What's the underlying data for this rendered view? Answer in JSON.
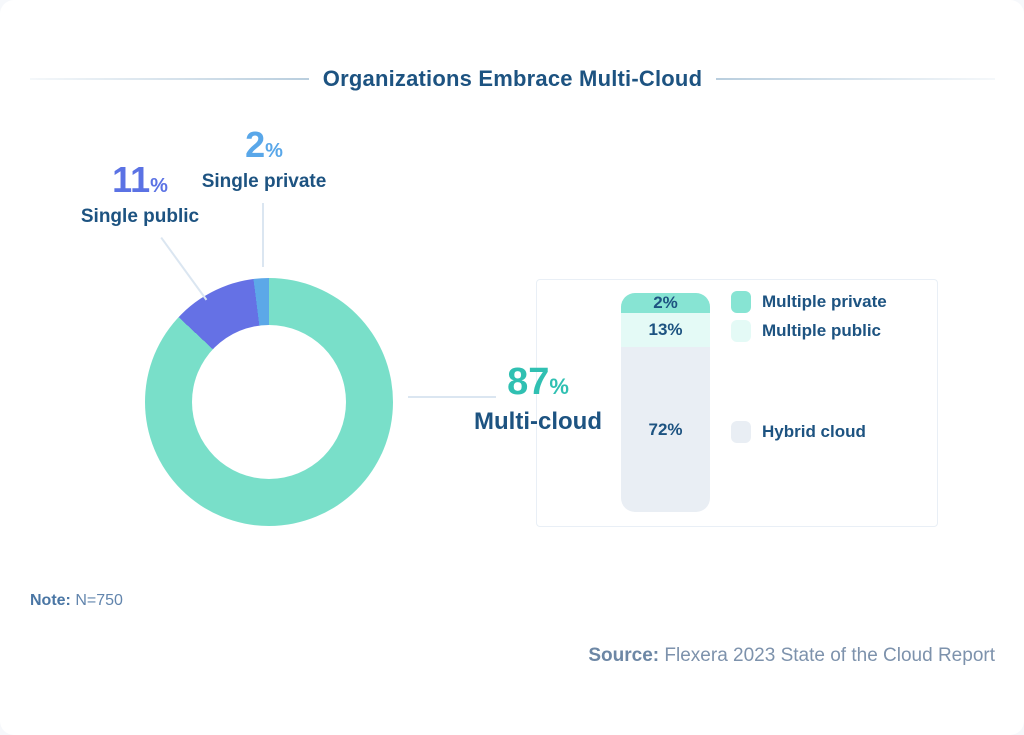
{
  "title": "Organizations Embrace Multi-Cloud",
  "chart_data": [
    {
      "type": "pie",
      "subtype": "donut",
      "title": "Organizations Embrace Multi-Cloud",
      "labels": [
        "Multi-cloud",
        "Single public",
        "Single private"
      ],
      "values": [
        87,
        11,
        2
      ],
      "colors": [
        "#79dfc9",
        "#6571e5",
        "#5ca8e8"
      ],
      "start_angle_deg": 0,
      "direction": "clockwise",
      "note": "N=750",
      "source": "Flexera 2023 State of the Cloud Report"
    },
    {
      "type": "bar",
      "stacked": true,
      "categories": [
        "Multiple private",
        "Multiple public",
        "Hybrid cloud"
      ],
      "values": [
        2,
        13,
        72
      ],
      "colors": [
        "#87e4d3",
        "#e4faf6",
        "#e9eef4"
      ],
      "legend_position": "right"
    }
  ],
  "callouts": {
    "single_private": {
      "value": "2",
      "pct": "%",
      "label": "Single private"
    },
    "single_public": {
      "value": "11",
      "pct": "%",
      "label": "Single public"
    },
    "multi_cloud": {
      "value": "87",
      "pct": "%",
      "label": "Multi-cloud"
    }
  },
  "bar_labels": [
    "2%",
    "13%",
    "72%"
  ],
  "legend": [
    {
      "label": "Multiple private",
      "color": "#87e4d3"
    },
    {
      "label": "Multiple public",
      "color": "#e4faf6"
    },
    {
      "label": "Hybrid cloud",
      "color": "#e9eef4"
    }
  ],
  "note": {
    "prefix": "Note:",
    "text": " N=750"
  },
  "source": {
    "prefix": "Source:",
    "text": " Flexera 2023 State of the Cloud Report"
  },
  "colors": {
    "title_text": "#1d5381",
    "teal_value": "#30c0b2",
    "indigo_value": "#5b72e4",
    "blue_value": "#59a7e9",
    "footnote": "#6285ad",
    "leader_line": "#dbe6f1",
    "panel_border": "#e9eff6"
  }
}
